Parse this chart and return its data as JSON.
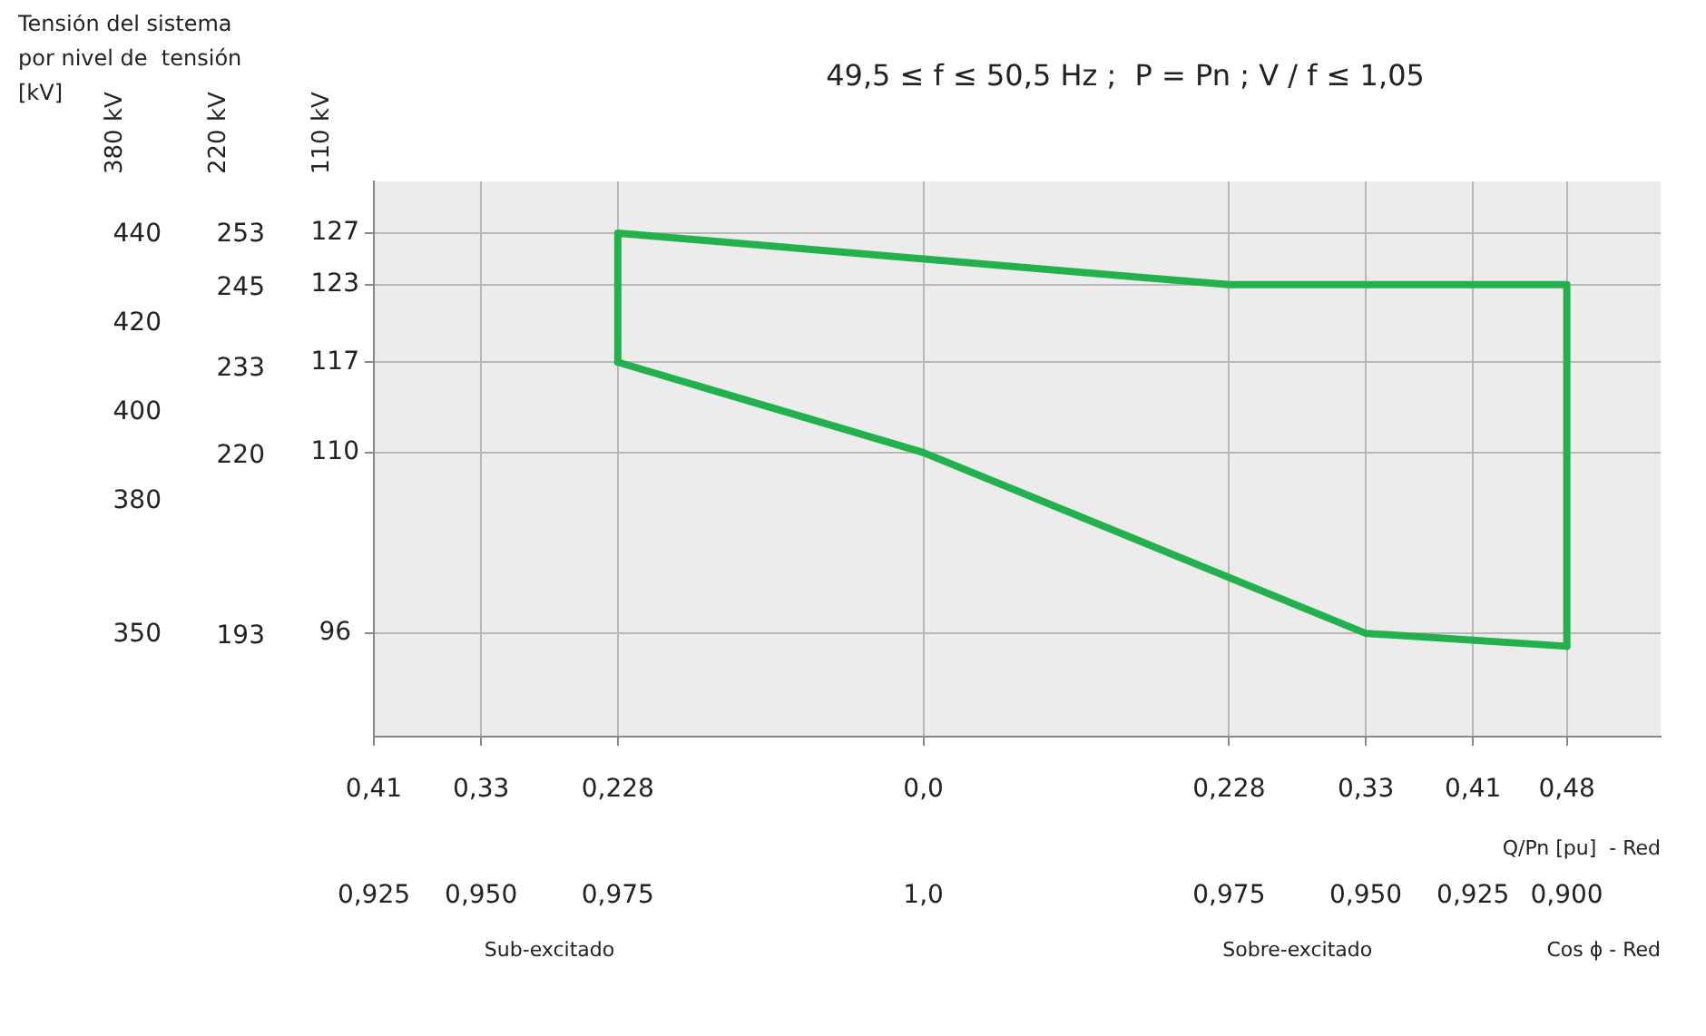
{
  "chart_data": {
    "type": "line",
    "title": "49,5 ≤ f ≤ 50,5 Hz ;  P = Pn ; V / f ≤ 1,05",
    "xlabel": "Q/Pn [pu]  - Red",
    "ylabel": "110 kV",
    "y2label": "220 kV",
    "y3label": "380 kV",
    "annotations": [
      "Tensión del sistema por nivel de  tensión [kV]",
      "0,925",
      "0,950",
      "0,975",
      "1,0",
      "0,975",
      "0,950",
      "0,925",
      "0,900",
      "Sub-excitado",
      "Sobre-excitado",
      "Cos ϕ - Red"
    ],
    "series": [
      {
        "color": "#22b14c",
        "x": [
          -0.228,
          -0.228,
          0.228,
          0.48,
          0.48
        ],
        "values": [
          117,
          127,
          123,
          123,
          95
        ]
      },
      {
        "color": "#22b14c",
        "x": [
          -0.228,
          0,
          0.33,
          0.48
        ],
        "values": [
          117,
          110,
          96,
          95
        ]
      }
    ],
    "xlim": [
      -0.41,
      0.55
    ],
    "xticks": [
      {
        "value": -0.41,
        "label": "0,41"
      },
      {
        "value": -0.33,
        "label": "0,33"
      },
      {
        "value": -0.228,
        "label": "0,228"
      },
      {
        "value": 0,
        "label": "0,0"
      },
      {
        "value": 0.228,
        "label": "0,228"
      },
      {
        "value": 0.33,
        "label": "0,33"
      },
      {
        "value": 0.41,
        "label": "0,41"
      },
      {
        "value": 0.48,
        "label": "0,48"
      }
    ],
    "ylim": [
      88,
      131
    ],
    "yticks": [
      96,
      110,
      117,
      123,
      127
    ],
    "y2lim": [
      178,
      261
    ],
    "y2ticks": [
      193,
      220,
      233,
      245,
      253
    ],
    "y3lim": [
      327,
      452
    ],
    "y3ticks": [
      350,
      380,
      400,
      420,
      440
    ],
    "grid": true,
    "marker": "none",
    "legend": false
  }
}
